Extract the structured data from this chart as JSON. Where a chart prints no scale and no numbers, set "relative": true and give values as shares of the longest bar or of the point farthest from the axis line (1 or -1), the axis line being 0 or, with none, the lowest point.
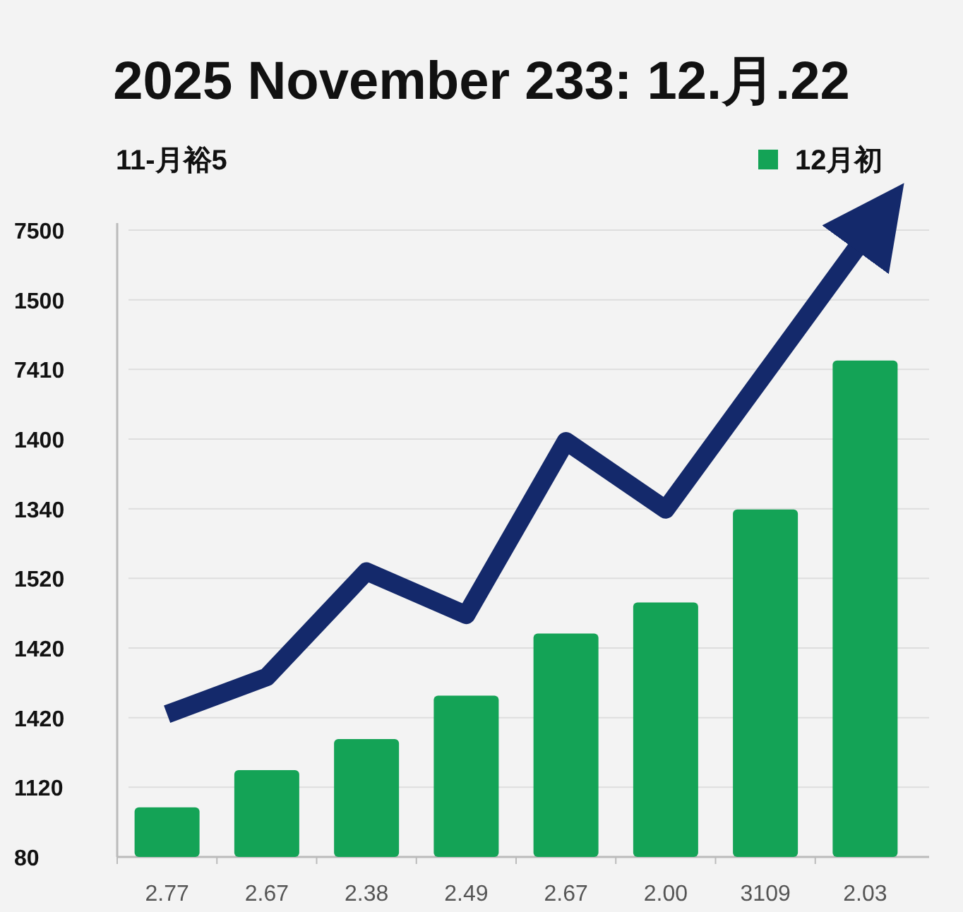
{
  "chart_data": {
    "type": "bar",
    "title": "2025 November 233: 12.月.22",
    "subtitle": "11-月裕5",
    "relative": true,
    "grid": "y",
    "legend": "top right",
    "categories": [
      "2.77",
      "2.67",
      "2.38",
      "2.49",
      "2.67",
      "2.00",
      "3109",
      "2.03"
    ],
    "annotations": [
      "7500",
      "1500",
      "7410",
      "1400",
      "1340",
      "1520",
      "1420",
      "1420",
      "1120",
      "80"
    ],
    "series": [
      {
        "name": "12月初",
        "color": "#14a356",
        "values": [
          0.08,
          0.14,
          0.19,
          0.26,
          0.36,
          0.41,
          0.56,
          0.8
        ]
      },
      {
        "type": "line",
        "color": "#14296b",
        "values": [
          0.23,
          0.29,
          0.46,
          0.39,
          0.67,
          0.56,
          0.78,
          1.0
        ]
      }
    ]
  }
}
